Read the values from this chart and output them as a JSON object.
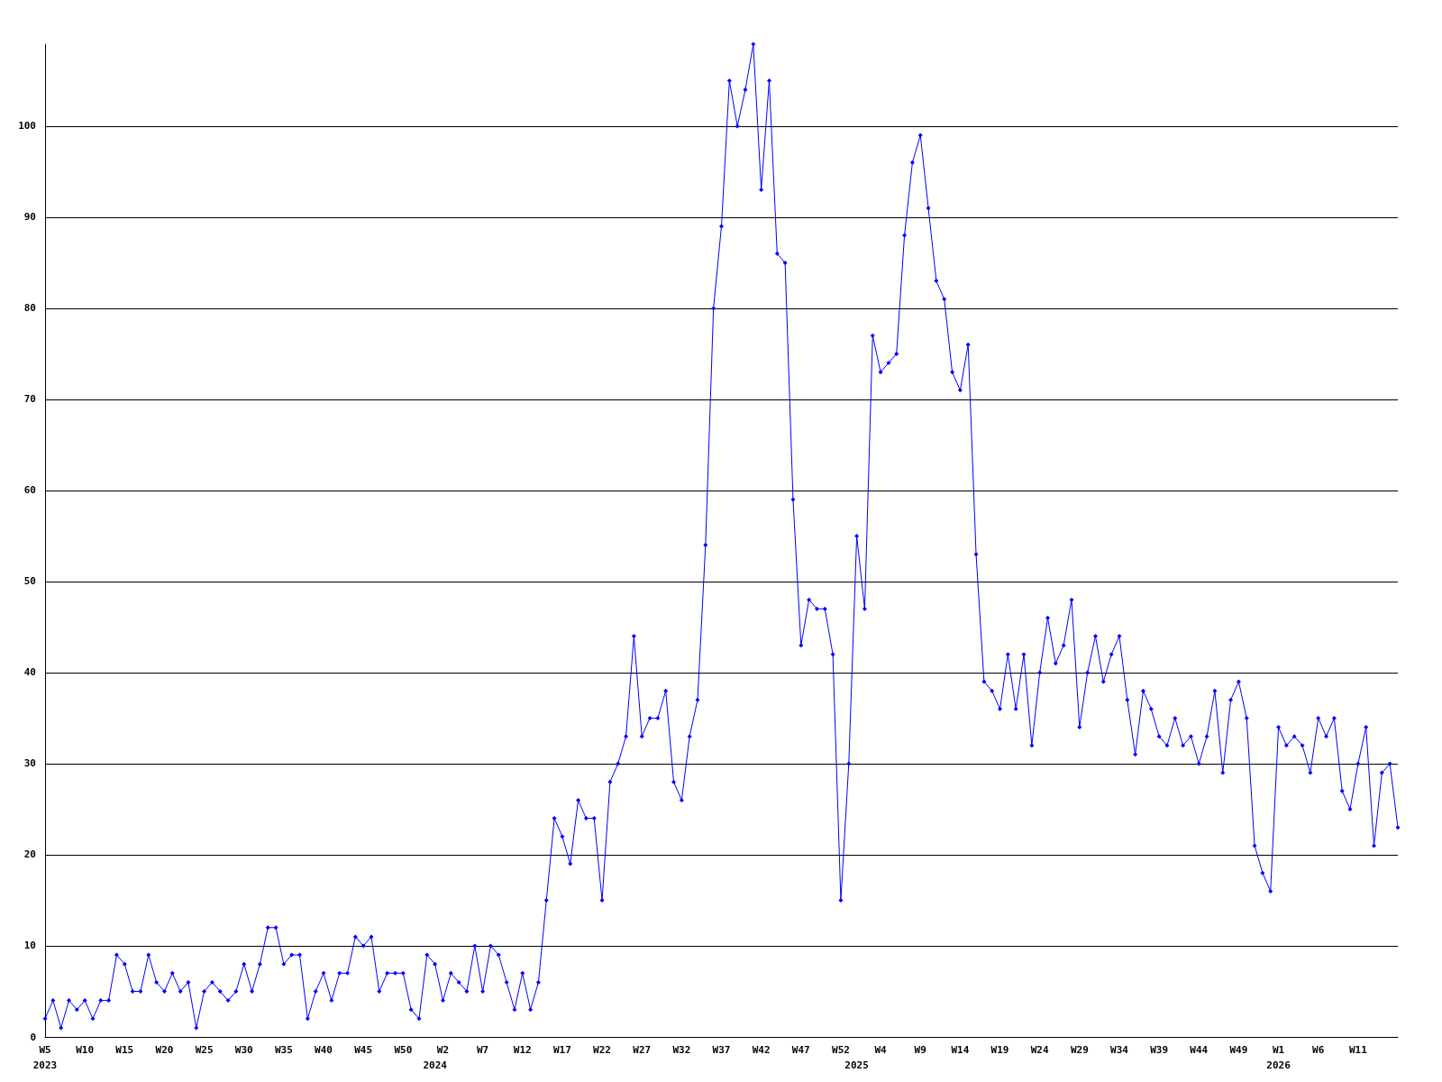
{
  "chart_data": {
    "type": "line",
    "categories": [
      "W5\n2023",
      null,
      null,
      null,
      null,
      "W10",
      null,
      null,
      null,
      null,
      "W15",
      null,
      null,
      null,
      null,
      "W20",
      null,
      null,
      null,
      null,
      "W25",
      null,
      null,
      null,
      null,
      "W30",
      null,
      null,
      null,
      null,
      "W35",
      null,
      null,
      null,
      null,
      "W40",
      null,
      null,
      null,
      null,
      "W45",
      null,
      null,
      null,
      null,
      "W50",
      null,
      null,
      null,
      "\n2024",
      "W2",
      null,
      null,
      null,
      null,
      "W7",
      null,
      null,
      null,
      null,
      "W12",
      null,
      null,
      null,
      null,
      "W17",
      null,
      null,
      null,
      null,
      "W22",
      null,
      null,
      null,
      null,
      "W27",
      null,
      null,
      null,
      null,
      "W32",
      null,
      null,
      null,
      null,
      "W37",
      null,
      null,
      null,
      null,
      "W42",
      null,
      null,
      null,
      null,
      "W47",
      null,
      null,
      null,
      null,
      "W52",
      null,
      "\n2025",
      null,
      null,
      "W4",
      null,
      null,
      null,
      null,
      "W9",
      null,
      null,
      null,
      null,
      "W14",
      null,
      null,
      null,
      null,
      "W19",
      null,
      null,
      null,
      null,
      "W24",
      null,
      null,
      null,
      null,
      "W29",
      null,
      null,
      null,
      null,
      "W34",
      null,
      null,
      null,
      null,
      "W39",
      null,
      null,
      null,
      null,
      "W44",
      null,
      null,
      null,
      null,
      "W49",
      null,
      null,
      null,
      null,
      "W1\n2026",
      null,
      null,
      null,
      null,
      "W6",
      null,
      null,
      null,
      null,
      "W11",
      null,
      null,
      null,
      null,
      null
    ],
    "series": [
      {
        "color": "#0000ff",
        "values": [
          2,
          4,
          1,
          4,
          3,
          4,
          2,
          4,
          4,
          9,
          8,
          5,
          5,
          9,
          6,
          5,
          7,
          5,
          6,
          1,
          5,
          6,
          5,
          4,
          5,
          8,
          5,
          8,
          12,
          12,
          8,
          9,
          9,
          2,
          5,
          7,
          4,
          7,
          7,
          11,
          10,
          11,
          5,
          7,
          7,
          7,
          3,
          2,
          9,
          8,
          4,
          7,
          6,
          5,
          10,
          5,
          10,
          9,
          6,
          3,
          7,
          3,
          6,
          15,
          24,
          22,
          19,
          26,
          24,
          24,
          15,
          28,
          30,
          33,
          44,
          33,
          35,
          35,
          38,
          28,
          26,
          33,
          37,
          54,
          80,
          89,
          105,
          100,
          104,
          109,
          93,
          105,
          86,
          85,
          59,
          43,
          48,
          47,
          47,
          42,
          15,
          30,
          55,
          47,
          77,
          73,
          74,
          75,
          88,
          96,
          99,
          91,
          83,
          81,
          73,
          71,
          76,
          53,
          39,
          38,
          36,
          42,
          36,
          42,
          32,
          40,
          46,
          41,
          43,
          48,
          34,
          40,
          44,
          39,
          42,
          44,
          37,
          31,
          38,
          36,
          33,
          32,
          35,
          32,
          33,
          30,
          33,
          38,
          29,
          37,
          39,
          35,
          21,
          18,
          16,
          34,
          32,
          33,
          32,
          29,
          35,
          33,
          35,
          27,
          25,
          30,
          34,
          21,
          29,
          30,
          23
        ]
      }
    ],
    "ylim": [
      0,
      109
    ],
    "yticks": [
      0,
      10,
      20,
      30,
      40,
      50,
      60,
      70,
      80,
      90,
      100
    ],
    "grid": "y",
    "marker": "diamond",
    "line_style": "solid"
  }
}
